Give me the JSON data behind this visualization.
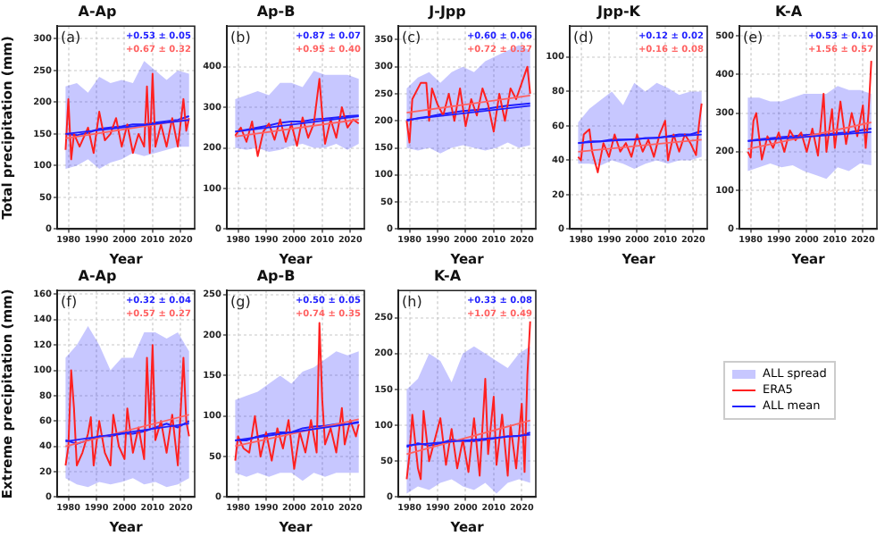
{
  "chart_data": [
    {
      "type": "line",
      "title": "A-Ap",
      "xlabel": "Year",
      "ylabel": "Total precipitation (mm)",
      "annotations": [
        "(a)",
        "+0.53 ± 0.05",
        "+0.67 ± 0.32"
      ],
      "xlim": [
        1976,
        2025
      ],
      "xticks": [
        1980,
        1990,
        2000,
        2010,
        2020
      ],
      "ylim": [
        0,
        320
      ],
      "yticks": [
        0,
        50,
        100,
        150,
        200,
        250,
        300
      ],
      "grid": true,
      "series": [
        {
          "type": "line",
          "color": "#ff2020",
          "x": [
            1979,
            1980,
            1981,
            1982,
            1984,
            1987,
            1989,
            1991,
            1993,
            1995,
            1997,
            1999,
            2001,
            2003,
            2005,
            2007,
            2008,
            2009,
            2010,
            2011,
            2013,
            2015,
            2017,
            2019,
            2021,
            2022,
            2023
          ],
          "values": [
            125,
            205,
            110,
            150,
            130,
            160,
            120,
            185,
            140,
            150,
            175,
            130,
            165,
            120,
            150,
            130,
            225,
            120,
            245,
            130,
            165,
            130,
            175,
            130,
            205,
            155,
            175
          ]
        },
        {
          "type": "line",
          "color": "#2020ff",
          "x": [
            1979,
            1983,
            1987,
            1991,
            1995,
            1999,
            2003,
            2007,
            2011,
            2015,
            2019,
            2023
          ],
          "values": [
            150,
            148,
            152,
            158,
            160,
            162,
            165,
            165,
            168,
            170,
            172,
            178
          ],
          "lower": [
            95,
            100,
            110,
            95,
            105,
            110,
            120,
            115,
            120,
            125,
            130,
            130
          ],
          "upper": [
            225,
            230,
            215,
            240,
            230,
            235,
            230,
            265,
            250,
            235,
            250,
            245
          ]
        },
        {
          "type": "line",
          "color": "#2020ff",
          "x": [
            1979,
            2023
          ],
          "values": [
            150,
            172
          ]
        },
        {
          "type": "line",
          "color": "#ff6060",
          "x": [
            1979,
            2023
          ],
          "values": [
            143,
            173
          ]
        }
      ]
    },
    {
      "type": "line",
      "title": "Ap-B",
      "xlabel": "Year",
      "annotations": [
        "(b)",
        "+0.87 ± 0.07",
        "+0.95 ± 0.40"
      ],
      "xlim": [
        1976,
        2025
      ],
      "xticks": [
        1980,
        1990,
        2000,
        2010,
        2020
      ],
      "ylim": [
        0,
        500
      ],
      "yticks": [
        0,
        100,
        200,
        300,
        400
      ],
      "grid": true,
      "series": [
        {
          "type": "line",
          "color": "#ff2020",
          "x": [
            1979,
            1981,
            1983,
            1985,
            1987,
            1989,
            1991,
            1993,
            1995,
            1997,
            1999,
            2001,
            2003,
            2005,
            2007,
            2009,
            2010,
            2011,
            2013,
            2015,
            2017,
            2019,
            2021,
            2023
          ],
          "values": [
            230,
            250,
            215,
            265,
            180,
            240,
            260,
            220,
            270,
            215,
            260,
            205,
            275,
            225,
            260,
            370,
            280,
            210,
            270,
            225,
            300,
            250,
            270,
            260
          ]
        },
        {
          "type": "line",
          "color": "#2020ff",
          "x": [
            1979,
            1983,
            1987,
            1991,
            1995,
            1999,
            2003,
            2007,
            2011,
            2015,
            2019,
            2023
          ],
          "values": [
            240,
            245,
            250,
            255,
            262,
            265,
            265,
            270,
            272,
            275,
            278,
            280
          ],
          "lower": [
            200,
            195,
            200,
            190,
            195,
            205,
            210,
            200,
            200,
            210,
            195,
            210
          ],
          "upper": [
            320,
            330,
            340,
            330,
            360,
            360,
            350,
            390,
            380,
            380,
            380,
            370
          ]
        },
        {
          "type": "line",
          "color": "#2020ff",
          "x": [
            1979,
            2023
          ],
          "values": [
            240,
            278
          ]
        },
        {
          "type": "line",
          "color": "#ff6060",
          "x": [
            1979,
            2023
          ],
          "values": [
            228,
            270
          ]
        }
      ]
    },
    {
      "type": "line",
      "title": "J-Jpp",
      "xlabel": "Year",
      "annotations": [
        "(c)",
        "+0.60 ± 0.06",
        "+0.72 ± 0.37"
      ],
      "xlim": [
        1976,
        2025
      ],
      "xticks": [
        1980,
        1990,
        2000,
        2010,
        2020
      ],
      "ylim": [
        0,
        375
      ],
      "yticks": [
        0,
        50,
        100,
        150,
        200,
        250,
        300,
        350
      ],
      "grid": true,
      "series": [
        {
          "type": "line",
          "color": "#ff2020",
          "x": [
            1979,
            1980,
            1981,
            1984,
            1986,
            1987,
            1988,
            1990,
            1992,
            1994,
            1996,
            1998,
            2000,
            2002,
            2004,
            2006,
            2008,
            2010,
            2012,
            2014,
            2016,
            2018,
            2020,
            2022,
            2023
          ],
          "values": [
            200,
            160,
            240,
            270,
            270,
            200,
            260,
            230,
            210,
            250,
            200,
            260,
            190,
            240,
            210,
            260,
            230,
            180,
            250,
            200,
            260,
            240,
            270,
            300,
            250
          ]
        },
        {
          "type": "line",
          "color": "#2020ff",
          "x": [
            1979,
            1983,
            1987,
            1991,
            1995,
            1999,
            2003,
            2007,
            2011,
            2015,
            2019,
            2023
          ],
          "values": [
            200,
            205,
            208,
            212,
            215,
            218,
            220,
            222,
            225,
            228,
            230,
            232
          ],
          "lower": [
            150,
            145,
            150,
            140,
            150,
            155,
            150,
            145,
            150,
            160,
            150,
            155
          ],
          "upper": [
            260,
            280,
            290,
            270,
            290,
            300,
            290,
            310,
            320,
            330,
            340,
            330
          ]
        },
        {
          "type": "line",
          "color": "#2020ff",
          "x": [
            1979,
            2023
          ],
          "values": [
            202,
            228
          ]
        },
        {
          "type": "line",
          "color": "#ff6060",
          "x": [
            1979,
            2023
          ],
          "values": [
            215,
            247
          ]
        }
      ]
    },
    {
      "type": "line",
      "title": "Jpp-K",
      "xlabel": "Year",
      "annotations": [
        "(d)",
        "+0.12 ± 0.02",
        "+0.16 ± 0.08"
      ],
      "xlim": [
        1976,
        2025
      ],
      "xticks": [
        1980,
        1990,
        2000,
        2010,
        2020
      ],
      "ylim": [
        0,
        118
      ],
      "yticks": [
        0,
        20,
        40,
        60,
        80,
        100
      ],
      "grid": true,
      "series": [
        {
          "type": "line",
          "color": "#ff2020",
          "x": [
            1979,
            1980,
            1981,
            1983,
            1984,
            1986,
            1988,
            1990,
            1992,
            1994,
            1996,
            1998,
            2000,
            2002,
            2004,
            2006,
            2008,
            2010,
            2011,
            2013,
            2015,
            2017,
            2019,
            2021,
            2022,
            2023
          ],
          "values": [
            42,
            40,
            55,
            58,
            45,
            33,
            50,
            42,
            55,
            45,
            50,
            42,
            55,
            45,
            52,
            42,
            55,
            63,
            40,
            55,
            45,
            55,
            50,
            43,
            60,
            73
          ]
        },
        {
          "type": "line",
          "color": "#2020ff",
          "x": [
            1979,
            1983,
            1987,
            1991,
            1995,
            1999,
            2003,
            2007,
            2011,
            2015,
            2019,
            2023
          ],
          "values": [
            50,
            51,
            51,
            52,
            52,
            52,
            53,
            53,
            54,
            55,
            55,
            57
          ],
          "lower": [
            38,
            38,
            37,
            40,
            38,
            35,
            38,
            40,
            38,
            40,
            40,
            42
          ],
          "upper": [
            62,
            70,
            75,
            80,
            72,
            85,
            80,
            85,
            82,
            78,
            80,
            80
          ]
        },
        {
          "type": "line",
          "color": "#2020ff",
          "x": [
            1979,
            2023
          ],
          "values": [
            50,
            55
          ]
        },
        {
          "type": "line",
          "color": "#ff6060",
          "x": [
            1979,
            2023
          ],
          "values": [
            45,
            52
          ]
        }
      ]
    },
    {
      "type": "line",
      "title": "K-A",
      "xlabel": "Year",
      "annotations": [
        "(e)",
        "+0.53 ± 0.10",
        "+1.56 ± 0.57"
      ],
      "xlim": [
        1976,
        2025
      ],
      "xticks": [
        1980,
        1990,
        2000,
        2010,
        2020
      ],
      "ylim": [
        0,
        525
      ],
      "yticks": [
        0,
        100,
        200,
        300,
        400,
        500
      ],
      "grid": true,
      "series": [
        {
          "type": "line",
          "color": "#ff2020",
          "x": [
            1979,
            1980,
            1981,
            1982,
            1984,
            1986,
            1988,
            1990,
            1992,
            1994,
            1996,
            1998,
            2000,
            2002,
            2004,
            2006,
            2007,
            2009,
            2010,
            2012,
            2014,
            2016,
            2018,
            2020,
            2021,
            2022,
            2023
          ],
          "values": [
            200,
            185,
            280,
            300,
            180,
            240,
            210,
            250,
            200,
            255,
            230,
            250,
            200,
            260,
            190,
            350,
            200,
            310,
            210,
            330,
            220,
            300,
            240,
            320,
            210,
            300,
            435
          ]
        },
        {
          "type": "line",
          "color": "#2020ff",
          "x": [
            1979,
            1983,
            1987,
            1991,
            1995,
            1999,
            2003,
            2007,
            2011,
            2015,
            2019,
            2023
          ],
          "values": [
            228,
            232,
            235,
            238,
            240,
            243,
            245,
            245,
            248,
            250,
            255,
            260
          ],
          "lower": [
            150,
            160,
            170,
            160,
            165,
            150,
            140,
            130,
            160,
            150,
            170,
            165
          ],
          "upper": [
            340,
            340,
            330,
            330,
            340,
            350,
            350,
            350,
            370,
            360,
            360,
            350
          ]
        },
        {
          "type": "line",
          "color": "#2020ff",
          "x": [
            1979,
            2023
          ],
          "values": [
            228,
            251
          ]
        },
        {
          "type": "line",
          "color": "#ff6060",
          "x": [
            1979,
            2023
          ],
          "values": [
            207,
            276
          ]
        }
      ]
    },
    {
      "type": "line",
      "title": "A-Ap",
      "xlabel": "Year",
      "ylabel": "Extreme precipitation (mm)",
      "annotations": [
        "(f)",
        "+0.32 ± 0.04",
        "+0.57 ± 0.27"
      ],
      "xlim": [
        1976,
        2025
      ],
      "xticks": [
        1980,
        1990,
        2000,
        2010,
        2020
      ],
      "ylim": [
        0,
        163
      ],
      "yticks": [
        0,
        20,
        40,
        60,
        80,
        100,
        120,
        140,
        160
      ],
      "grid": true,
      "series": [
        {
          "type": "line",
          "color": "#ff2020",
          "x": [
            1979,
            1980,
            1981,
            1982,
            1983,
            1985,
            1987,
            1988,
            1989,
            1991,
            1993,
            1995,
            1996,
            1998,
            2000,
            2001,
            2003,
            2005,
            2007,
            2008,
            2009,
            2010,
            2011,
            2013,
            2015,
            2017,
            2019,
            2021,
            2022,
            2023
          ],
          "values": [
            25,
            40,
            100,
            70,
            25,
            35,
            50,
            63,
            25,
            60,
            35,
            25,
            65,
            40,
            30,
            70,
            35,
            55,
            30,
            110,
            55,
            120,
            45,
            60,
            35,
            65,
            25,
            110,
            60,
            48
          ]
        },
        {
          "type": "line",
          "color": "#2020ff",
          "x": [
            1979,
            1983,
            1987,
            1991,
            1995,
            1999,
            2003,
            2007,
            2011,
            2015,
            2019,
            2023
          ],
          "values": [
            45,
            42,
            45,
            48,
            48,
            50,
            50,
            52,
            55,
            58,
            55,
            60
          ],
          "lower": [
            15,
            10,
            8,
            12,
            10,
            12,
            15,
            10,
            12,
            8,
            10,
            15
          ],
          "upper": [
            110,
            120,
            135,
            120,
            100,
            110,
            110,
            130,
            130,
            125,
            130,
            115
          ]
        },
        {
          "type": "line",
          "color": "#2020ff",
          "x": [
            1979,
            2023
          ],
          "values": [
            44,
            58
          ]
        },
        {
          "type": "line",
          "color": "#ff6060",
          "x": [
            1979,
            2023
          ],
          "values": [
            40,
            65
          ]
        }
      ]
    },
    {
      "type": "line",
      "title": "Ap-B",
      "xlabel": "Year",
      "annotations": [
        "(g)",
        "+0.50 ± 0.05",
        "+0.74 ± 0.35"
      ],
      "xlim": [
        1976,
        2025
      ],
      "xticks": [
        1980,
        1990,
        2000,
        2010,
        2020
      ],
      "ylim": [
        0,
        255
      ],
      "yticks": [
        0,
        50,
        100,
        150,
        200,
        250
      ],
      "grid": true,
      "series": [
        {
          "type": "line",
          "color": "#ff2020",
          "x": [
            1979,
            1980,
            1982,
            1984,
            1986,
            1988,
            1990,
            1992,
            1994,
            1996,
            1998,
            2000,
            2002,
            2004,
            2006,
            2008,
            2009,
            2010,
            2011,
            2013,
            2015,
            2017,
            2018,
            2020,
            2022,
            2023
          ],
          "values": [
            45,
            75,
            60,
            55,
            100,
            50,
            80,
            45,
            85,
            60,
            95,
            35,
            80,
            55,
            95,
            55,
            215,
            120,
            65,
            85,
            55,
            110,
            65,
            95,
            75,
            90
          ]
        },
        {
          "type": "line",
          "color": "#2020ff",
          "x": [
            1979,
            1983,
            1987,
            1991,
            1995,
            1999,
            2003,
            2007,
            2011,
            2015,
            2019,
            2023
          ],
          "values": [
            70,
            70,
            75,
            78,
            80,
            80,
            85,
            87,
            88,
            90,
            90,
            93
          ],
          "lower": [
            30,
            25,
            30,
            25,
            30,
            30,
            20,
            30,
            25,
            30,
            30,
            30
          ],
          "upper": [
            120,
            125,
            130,
            140,
            150,
            140,
            155,
            160,
            170,
            180,
            175,
            180
          ]
        },
        {
          "type": "line",
          "color": "#2020ff",
          "x": [
            1979,
            2023
          ],
          "values": [
            70,
            92
          ]
        },
        {
          "type": "line",
          "color": "#ff6060",
          "x": [
            1979,
            2023
          ],
          "values": [
            63,
            96
          ]
        }
      ]
    },
    {
      "type": "line",
      "title": "K-A",
      "xlabel": "Year",
      "annotations": [
        "(h)",
        "+0.33 ± 0.08",
        "+1.07 ± 0.49",
        "ALL spread"
      ],
      "xlim": [
        1976,
        2025
      ],
      "xticks": [
        1980,
        1990,
        2000,
        2010,
        2020
      ],
      "ylim": [
        0,
        288
      ],
      "yticks": [
        0,
        50,
        100,
        150,
        200,
        250
      ],
      "grid": true,
      "legend": "right",
      "series": [
        {
          "name": "ERA5",
          "type": "line",
          "color": "#ff2020",
          "x": [
            1979,
            1980,
            1981,
            1983,
            1984,
            1985,
            1987,
            1989,
            1991,
            1993,
            1995,
            1997,
            1999,
            2001,
            2003,
            2005,
            2007,
            2008,
            2010,
            2011,
            2013,
            2015,
            2016,
            2018,
            2020,
            2021,
            2022,
            2023
          ],
          "values": [
            25,
            60,
            115,
            40,
            25,
            120,
            50,
            80,
            110,
            45,
            95,
            40,
            80,
            35,
            110,
            30,
            165,
            60,
            140,
            45,
            115,
            30,
            100,
            40,
            130,
            35,
            170,
            245
          ]
        },
        {
          "name": "ALL mean",
          "type": "line",
          "color": "#2020ff",
          "x": [
            1979,
            1983,
            1987,
            1991,
            1995,
            1999,
            2003,
            2007,
            2011,
            2015,
            2019,
            2023
          ],
          "values": [
            70,
            75,
            72,
            75,
            80,
            78,
            78,
            80,
            82,
            85,
            85,
            90
          ],
          "lower": [
            5,
            15,
            10,
            20,
            25,
            15,
            10,
            20,
            5,
            20,
            25,
            20
          ],
          "upper": [
            150,
            165,
            200,
            190,
            160,
            200,
            210,
            200,
            190,
            180,
            200,
            210
          ]
        },
        {
          "type": "line",
          "color": "#2020ff",
          "x": [
            1979,
            2023
          ],
          "values": [
            72,
            87
          ]
        },
        {
          "type": "line",
          "color": "#ff6060",
          "x": [
            1979,
            2023
          ],
          "values": [
            60,
            107
          ]
        }
      ]
    }
  ]
}
